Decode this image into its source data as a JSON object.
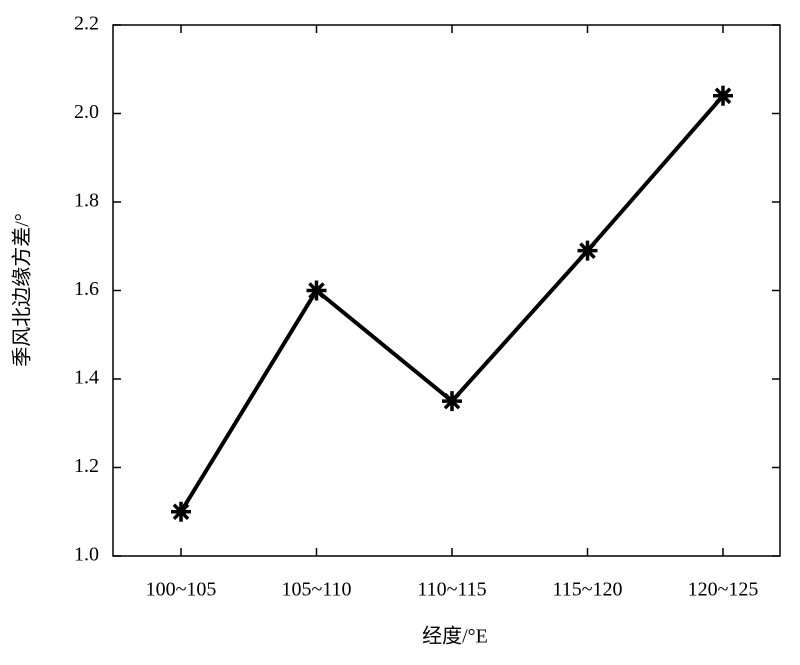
{
  "chart_data": {
    "type": "line",
    "x_label": "经度/°E",
    "y_label": "季风北边缘方差/°",
    "categories": [
      "100~105",
      "105~110",
      "110~115",
      "115~120",
      "120~125"
    ],
    "values": [
      1.1,
      1.6,
      1.35,
      1.69,
      2.04
    ],
    "color": "#000000",
    "ylim": [
      1.0,
      2.2
    ],
    "yticks": [
      {
        "value": 1.0,
        "label": "1.0"
      },
      1.2,
      1.4,
      1.6,
      1.8,
      {
        "value": 2.0,
        "label": "2.0"
      },
      2.2
    ]
  }
}
